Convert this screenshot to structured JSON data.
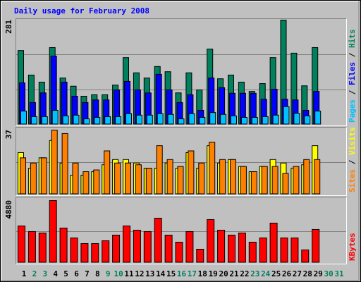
{
  "chart_data": [
    {
      "type": "bar",
      "title": "Daily usage for February 2008",
      "legend_separator": " / ",
      "ylim": [
        0,
        281
      ],
      "yticks": [
        281
      ],
      "series": [
        {
          "name": "Hits",
          "color": "#00805c",
          "values": [
            199,
            133,
            114,
            207,
            125,
            103,
            76,
            80,
            80,
            106,
            180,
            139,
            125,
            156,
            142,
            85,
            139,
            93,
            203,
            123,
            133,
            114,
            89,
            110,
            180,
            281,
            192,
            104,
            207,
            null,
            null
          ]
        },
        {
          "name": "Files",
          "color": "#0000ff",
          "values": [
            112,
            59,
            85,
            184,
            114,
            76,
            59,
            66,
            66,
            93,
            116,
            93,
            85,
            135,
            93,
            59,
            80,
            38,
            125,
            99,
            84,
            84,
            84,
            68,
            95,
            68,
            66,
            38,
            89,
            null,
            null
          ]
        },
        {
          "name": "Pages",
          "color": "#00c0ff",
          "values": [
            36,
            21,
            21,
            38,
            23,
            25,
            15,
            19,
            21,
            21,
            29,
            25,
            25,
            29,
            27,
            15,
            29,
            19,
            32,
            27,
            23,
            19,
            19,
            21,
            25,
            48,
            30,
            23,
            36,
            null,
            null
          ]
        }
      ]
    },
    {
      "type": "bar",
      "legend_separator": " / ",
      "ylim": [
        0,
        37
      ],
      "yticks": [
        37
      ],
      "series": [
        {
          "name": "Visits",
          "color": "#ffff00",
          "values": [
            24,
            15,
            21,
            31,
            18,
            11,
            11,
            13,
            17,
            20,
            20,
            18,
            15,
            15,
            18,
            15,
            24,
            15,
            28,
            18,
            20,
            16,
            13,
            16,
            20,
            18,
            15,
            17,
            28,
            null,
            null
          ]
        },
        {
          "name": "Sites",
          "color": "#ff8000",
          "values": [
            21,
            18,
            21,
            37,
            35,
            18,
            13,
            14,
            25,
            18,
            18,
            17,
            15,
            28,
            20,
            16,
            25,
            18,
            30,
            20,
            20,
            16,
            13,
            16,
            16,
            12,
            16,
            20,
            20,
            null,
            null
          ]
        }
      ]
    },
    {
      "type": "bar",
      "ylim": [
        0,
        4880
      ],
      "yticks": [
        4880
      ],
      "categories": [
        "1",
        "2",
        "3",
        "4",
        "5",
        "6",
        "7",
        "8",
        "9",
        "10",
        "11",
        "12",
        "13",
        "14",
        "15",
        "16",
        "17",
        "18",
        "19",
        "20",
        "21",
        "22",
        "23",
        "24",
        "25",
        "26",
        "27",
        "28",
        "29",
        "30",
        "31"
      ],
      "category_colors": [
        "#000000",
        "#00805c",
        "#00805c",
        "#000000",
        "#000000",
        "#000000",
        "#000000",
        "#000000",
        "#00805c",
        "#00805c",
        "#000000",
        "#000000",
        "#000000",
        "#000000",
        "#000000",
        "#00805c",
        "#00805c",
        "#000000",
        "#000000",
        "#000000",
        "#000000",
        "#000000",
        "#00805c",
        "#00805c",
        "#000000",
        "#000000",
        "#000000",
        "#000000",
        "#000000",
        "#00805c",
        "#00805c"
      ],
      "series": [
        {
          "name": "KBytes",
          "color": "#ff0000",
          "values": [
            2886,
            2442,
            2331,
            4880,
            2720,
            1943,
            1498,
            1498,
            1720,
            2165,
            2886,
            2553,
            2442,
            3497,
            2165,
            1610,
            2442,
            1055,
            3386,
            2553,
            2165,
            2331,
            1610,
            1943,
            3108,
            1943,
            1943,
            999,
            2609,
            null,
            null
          ]
        }
      ]
    }
  ]
}
